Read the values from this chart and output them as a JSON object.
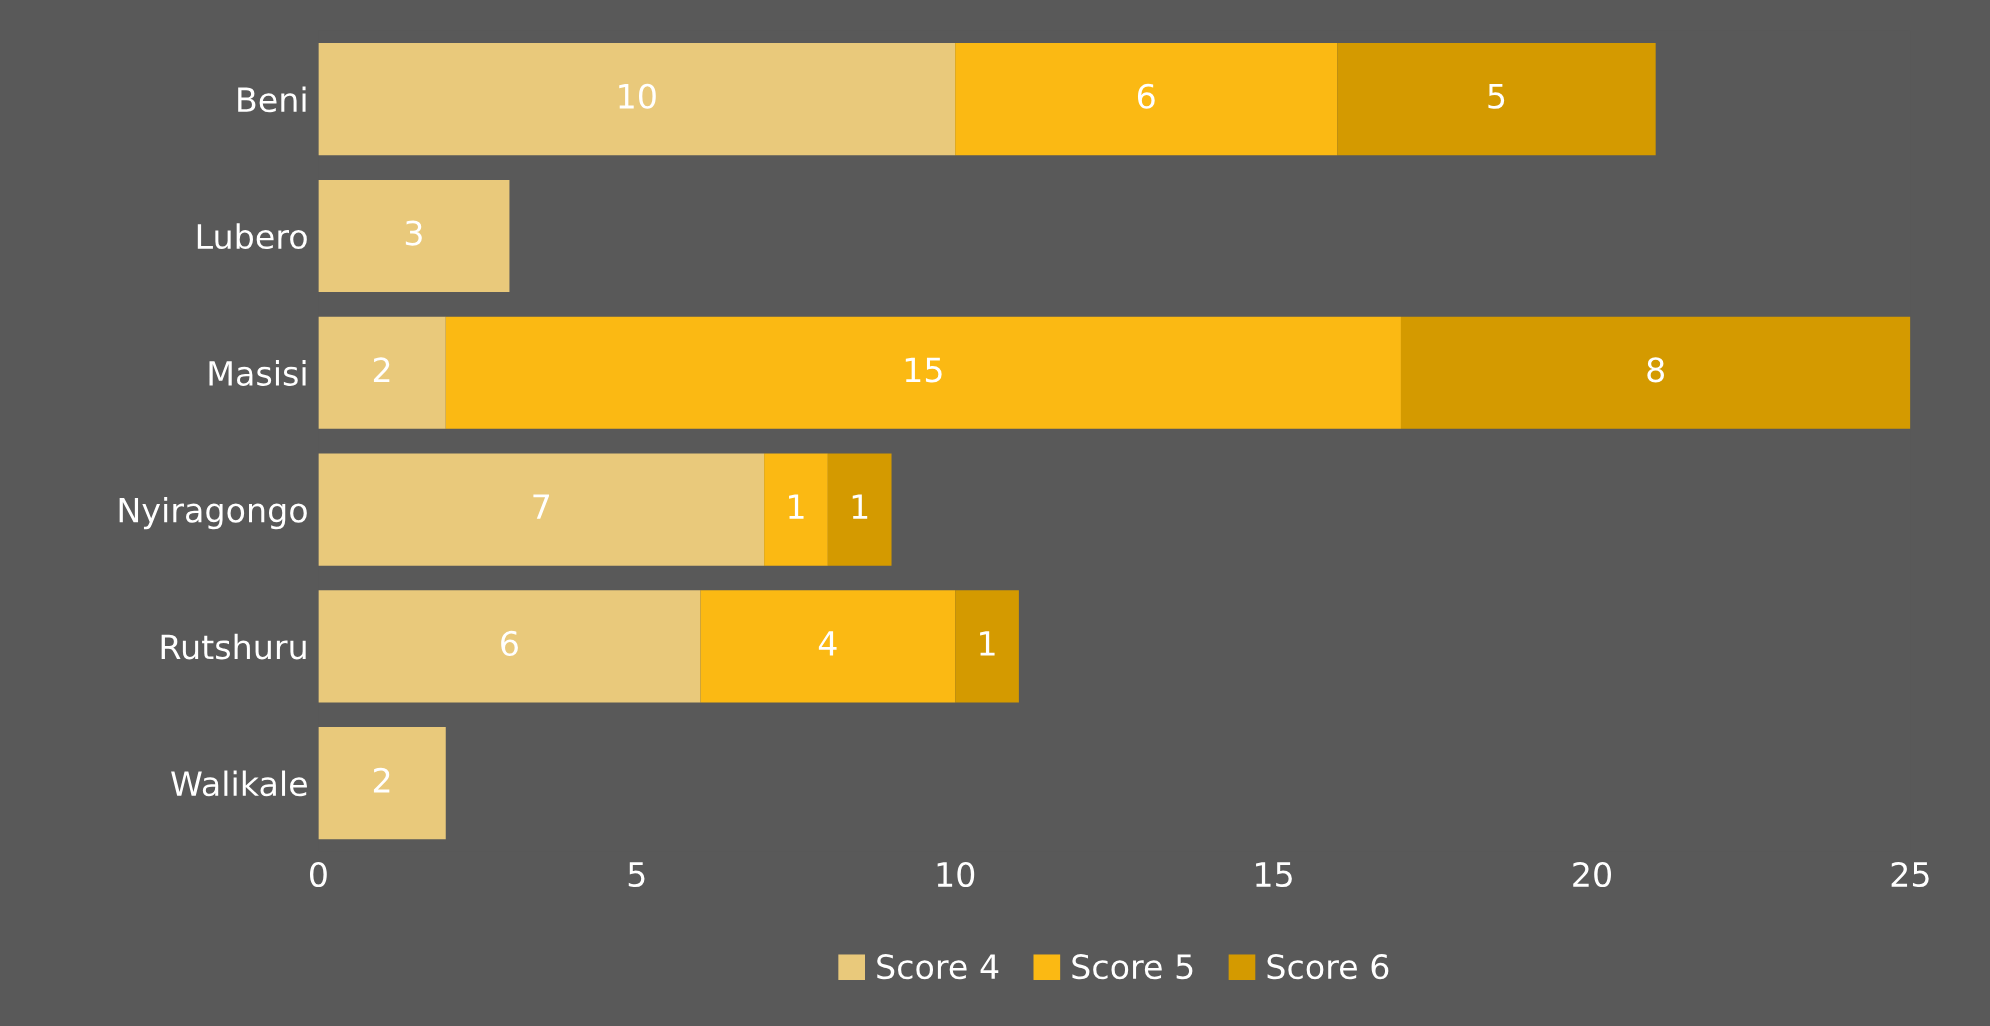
{
  "chart_data": {
    "type": "bar",
    "orientation": "horizontal",
    "stacked": true,
    "categories": [
      "Beni",
      "Lubero",
      "Masisi",
      "Nyiragongo",
      "Rutshuru",
      "Walikale"
    ],
    "series": [
      {
        "name": "Score 4",
        "color": "#e9c97b",
        "values": [
          10,
          3,
          2,
          7,
          6,
          2
        ]
      },
      {
        "name": "Score 5",
        "color": "#fbb913",
        "values": [
          6,
          null,
          15,
          1,
          4,
          null
        ]
      },
      {
        "name": "Score 6",
        "color": "#d49a00",
        "values": [
          5,
          null,
          8,
          1,
          1,
          null
        ]
      }
    ],
    "xlim": [
      0,
      25
    ],
    "xticks": [
      0,
      5,
      10,
      15,
      20,
      25
    ],
    "data_labels": true,
    "legend": "bottom",
    "grid": false
  }
}
